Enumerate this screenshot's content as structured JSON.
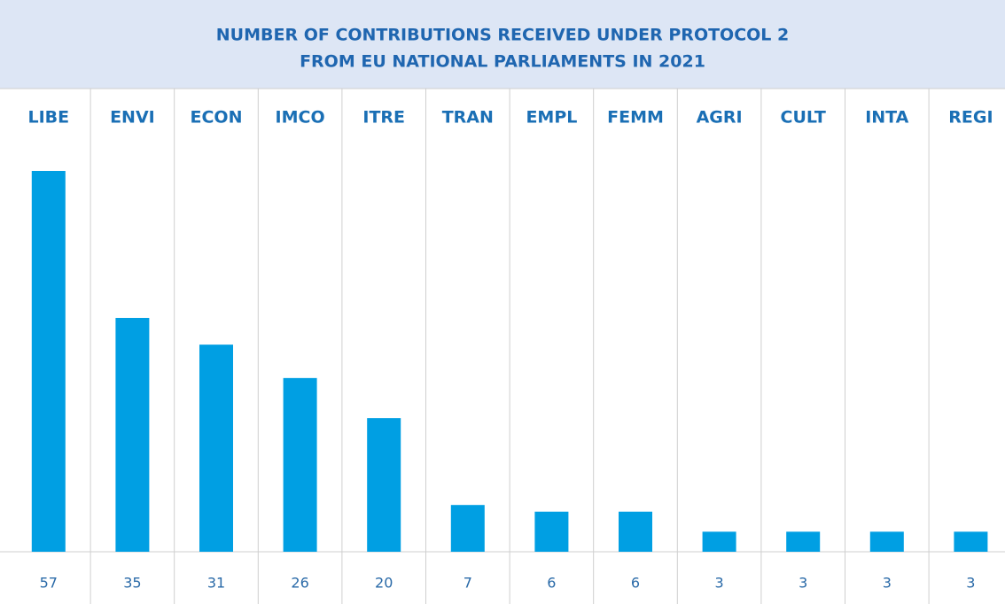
{
  "chart_data": {
    "type": "bar",
    "title": [
      "NUMBER OF CONTRIBUTIONS RECEIVED UNDER PROTOCOL 2",
      "FROM EU NATIONAL PARLIAMENTS IN 2021"
    ],
    "categories": [
      "LIBE",
      "ENVI",
      "ECON",
      "IMCO",
      "ITRE",
      "TRAN",
      "EMPL",
      "FEMM",
      "AGRI",
      "CULT",
      "INTA",
      "REGI"
    ],
    "values": [
      57,
      35,
      31,
      26,
      20,
      7,
      6,
      6,
      3,
      3,
      3,
      3
    ],
    "color": "#009fe3"
  }
}
